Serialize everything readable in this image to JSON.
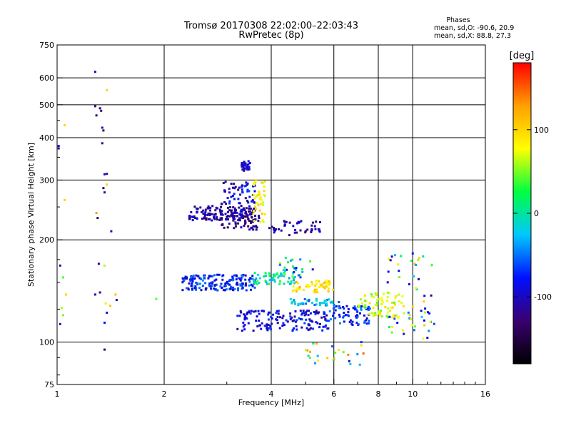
{
  "chart_data": {
    "type": "scatter",
    "title": "Tromsø 20170308 22:02:00–22:03:43",
    "subtitle": "RwPretec (8p)",
    "xlabel": "Frequency [MHz]",
    "ylabel": "Stationary phase Virtual Height [km]",
    "x_scale": "log",
    "y_scale": "log",
    "xlim": [
      1,
      16
    ],
    "ylim": [
      75,
      750
    ],
    "x_ticks": [
      1,
      2,
      4,
      6,
      8,
      10,
      16
    ],
    "x_tick_labels": [
      "1",
      "2",
      "4",
      "6",
      "8",
      "10",
      "16"
    ],
    "y_ticks": [
      75,
      100,
      200,
      300,
      400,
      500,
      600,
      750
    ],
    "y_tick_labels": [
      "75",
      "100",
      "200",
      "300",
      "400",
      "500",
      "600",
      "750"
    ],
    "grid_x": [
      2,
      4,
      6,
      8,
      10
    ],
    "grid_y": [
      100,
      200,
      300,
      400,
      500,
      600
    ],
    "phases_stats": {
      "heading": "Phases",
      "line_o": "mean, sd,O: -90.6, 20.9",
      "line_x": "mean, sd,X:  88.8, 27.3"
    },
    "colorbar": {
      "unit": "[deg]",
      "range": [
        -180,
        180
      ],
      "ticks": [
        100,
        0,
        -100
      ],
      "tick_labels": [
        "100",
        "0",
        "-100"
      ],
      "colors": [
        "#000000",
        "#3a0070",
        "#0010ff",
        "#00c8ff",
        "#00ff40",
        "#ffff00",
        "#ffa000",
        "#ff0000"
      ]
    },
    "series": [
      {
        "values": [
          [
            1.01,
            378,
            -95
          ],
          [
            1.01,
            372,
            -110
          ],
          [
            1.05,
            435,
            100
          ],
          [
            1.05,
            262,
            100
          ],
          [
            1.02,
            168,
            -110
          ],
          [
            1.04,
            155,
            40
          ],
          [
            1.03,
            126,
            60
          ],
          [
            1.06,
            138,
            100
          ],
          [
            1.02,
            113,
            -100
          ],
          [
            1.04,
            120,
            50
          ],
          [
            1.28,
            625,
            -110
          ],
          [
            1.28,
            495,
            -120
          ],
          [
            1.29,
            465,
            -130
          ],
          [
            1.32,
            488,
            -140
          ],
          [
            1.33,
            480,
            -120
          ],
          [
            1.34,
            428,
            -110
          ],
          [
            1.35,
            420,
            -150
          ],
          [
            1.34,
            385,
            -120
          ],
          [
            1.36,
            312,
            -100
          ],
          [
            1.38,
            313,
            -110
          ],
          [
            1.35,
            284,
            -140
          ],
          [
            1.36,
            276,
            -120
          ],
          [
            1.38,
            291,
            100
          ],
          [
            1.29,
            240,
            130
          ],
          [
            1.3,
            232,
            -140
          ],
          [
            1.38,
            552,
            100
          ],
          [
            1.42,
            212,
            -100
          ],
          [
            1.32,
            140,
            -130
          ],
          [
            1.37,
            130,
            90
          ],
          [
            1.38,
            122,
            -90
          ],
          [
            1.36,
            114,
            -80
          ],
          [
            1.41,
            128,
            110
          ],
          [
            1.36,
            95,
            -140
          ],
          [
            1.47,
            133,
            -100
          ],
          [
            1.31,
            170,
            -120
          ],
          [
            1.36,
            168,
            60
          ],
          [
            1.9,
            134,
            40
          ],
          [
            1.28,
            138,
            -100
          ],
          [
            1.46,
            138,
            110
          ]
        ]
      }
    ],
    "clusters": [
      {
        "x_range": [
          2.35,
          3.6
        ],
        "y_range": [
          228,
          252
        ],
        "phase": [
          -140,
          -80
        ],
        "count": 150
      },
      {
        "x_range": [
          2.9,
          3.7
        ],
        "y_range": [
          214,
          238
        ],
        "phase": [
          -150,
          -90
        ],
        "count": 60
      },
      {
        "x_range": [
          2.9,
          3.65
        ],
        "y_range": [
          255,
          300
        ],
        "phase": [
          -120,
          -60
        ],
        "count": 55
      },
      {
        "x_range": [
          3.3,
          3.5
        ],
        "y_range": [
          318,
          342
        ],
        "phase": [
          -110,
          -80
        ],
        "count": 30
      },
      {
        "x_range": [
          3.55,
          3.85
        ],
        "y_range": [
          225,
          300
        ],
        "phase": [
          60,
          110
        ],
        "count": 40
      },
      {
        "x_range": [
          3.95,
          5.6
        ],
        "y_range": [
          205,
          228
        ],
        "phase": [
          -130,
          -80
        ],
        "count": 45
      },
      {
        "x_range": [
          2.25,
          3.6
        ],
        "y_range": [
          142,
          158
        ],
        "phase": [
          -110,
          -40
        ],
        "count": 170
      },
      {
        "x_range": [
          3.55,
          4.7
        ],
        "y_range": [
          148,
          160
        ],
        "phase": [
          -40,
          40
        ],
        "count": 60
      },
      {
        "x_range": [
          4.6,
          6.0
        ],
        "y_range": [
          140,
          152
        ],
        "phase": [
          70,
          120
        ],
        "count": 55
      },
      {
        "x_range": [
          4.5,
          6.2
        ],
        "y_range": [
          128,
          134
        ],
        "phase": [
          -60,
          0
        ],
        "count": 40
      },
      {
        "x_range": [
          3.2,
          5.8
        ],
        "y_range": [
          108,
          124
        ],
        "phase": [
          -120,
          -60
        ],
        "count": 150
      },
      {
        "x_range": [
          5.8,
          7.6
        ],
        "y_range": [
          112,
          128
        ],
        "phase": [
          -100,
          -40
        ],
        "count": 70
      },
      {
        "x_range": [
          7.0,
          9.5
        ],
        "y_range": [
          118,
          140
        ],
        "phase": [
          40,
          100
        ],
        "count": 70
      },
      {
        "x_range": [
          8.5,
          11.5
        ],
        "y_range": [
          100,
          185
        ],
        "phase": [
          -120,
          120
        ],
        "count": 60
      },
      {
        "x_range": [
          4.2,
          5.3
        ],
        "y_range": [
          155,
          178
        ],
        "phase": [
          -100,
          60
        ],
        "count": 25
      },
      {
        "x_range": [
          5.0,
          7.5
        ],
        "y_range": [
          85,
          100
        ],
        "phase": [
          -120,
          150
        ],
        "count": 25
      }
    ]
  }
}
